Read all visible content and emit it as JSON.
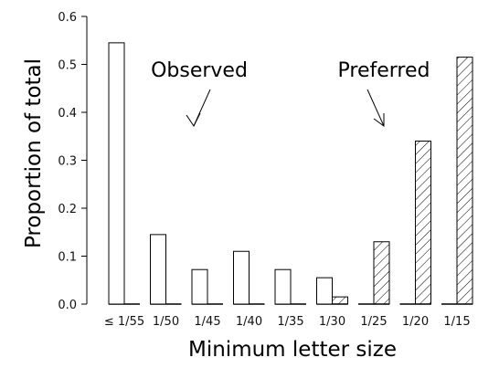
{
  "chart_data": {
    "type": "bar",
    "xlabel": "Minimum letter size",
    "ylabel": "Proportion of total",
    "ylim": [
      0,
      0.6
    ],
    "yticks": [
      "0.0",
      "0.1",
      "0.2",
      "0.3",
      "0.4",
      "0.5",
      "0.6"
    ],
    "categories": [
      "≤ 1/55",
      "1/50",
      "1/45",
      "1/40",
      "1/35",
      "1/30",
      "1/25",
      "1/20",
      "1/15"
    ],
    "series": [
      {
        "name": "Observed",
        "pattern": "open",
        "values": [
          0.545,
          0.145,
          0.072,
          0.11,
          0.072,
          0.055,
          0.0,
          0.0,
          0.0
        ]
      },
      {
        "name": "Preferred",
        "pattern": "hatched",
        "values": [
          0.0,
          0.0,
          0.0,
          0.0,
          0.0,
          0.015,
          0.13,
          0.34,
          0.515
        ]
      }
    ],
    "annotations": [
      {
        "text": "Observed",
        "points_to": "Observed"
      },
      {
        "text": "Preferred",
        "points_to": "Preferred"
      }
    ]
  }
}
